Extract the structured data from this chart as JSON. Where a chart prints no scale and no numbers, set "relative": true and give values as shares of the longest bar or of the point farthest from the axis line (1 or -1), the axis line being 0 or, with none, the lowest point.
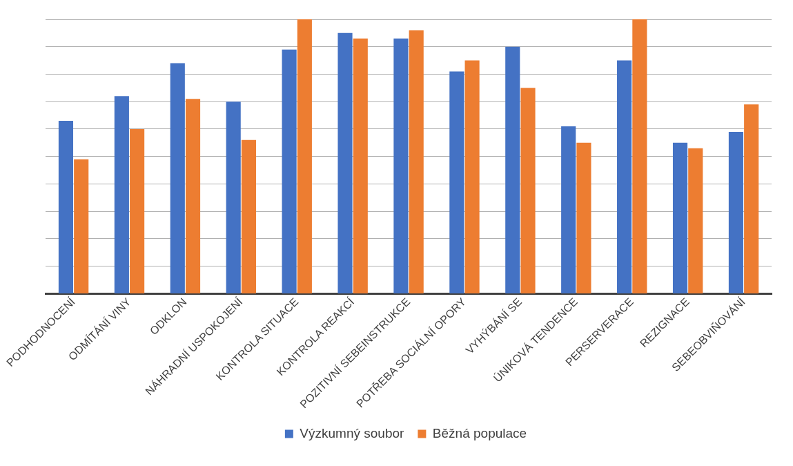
{
  "chart_data": {
    "type": "bar",
    "relative": true,
    "grid": "y",
    "legend": "bottom",
    "categories": [
      "PODHODNOCENÍ",
      "ODMÍTÁNÍ VINY",
      "ODKLON",
      "NÁHRADNÍ USPOKOJENÍ",
      "KONTROLA SITUACE",
      "KONTROLA REAKCÍ",
      "POZITIVNÍ SEBEINSTRUKCE",
      "POTŘEBA SOCIÁLNÍ OPORY",
      "VYHÝBÁNÍ SE",
      "ÚNIKOVÁ TENDENCE",
      "PERSERVERACE",
      "REZIGNACE",
      "SEBEOBVIŇOVÁNÍ"
    ],
    "series": [
      {
        "name": "Výzkumný soubor",
        "color": "#4472c4",
        "values": [
          0.63,
          0.72,
          0.84,
          0.7,
          0.89,
          0.95,
          0.93,
          0.81,
          0.9,
          0.61,
          0.85,
          0.55,
          0.59
        ]
      },
      {
        "name": "Běžná populace",
        "color": "#ed7d31",
        "values": [
          0.49,
          0.6,
          0.71,
          0.56,
          1,
          0.93,
          0.96,
          0.85,
          0.75,
          0.55,
          1,
          0.53,
          0.69
        ]
      }
    ]
  }
}
